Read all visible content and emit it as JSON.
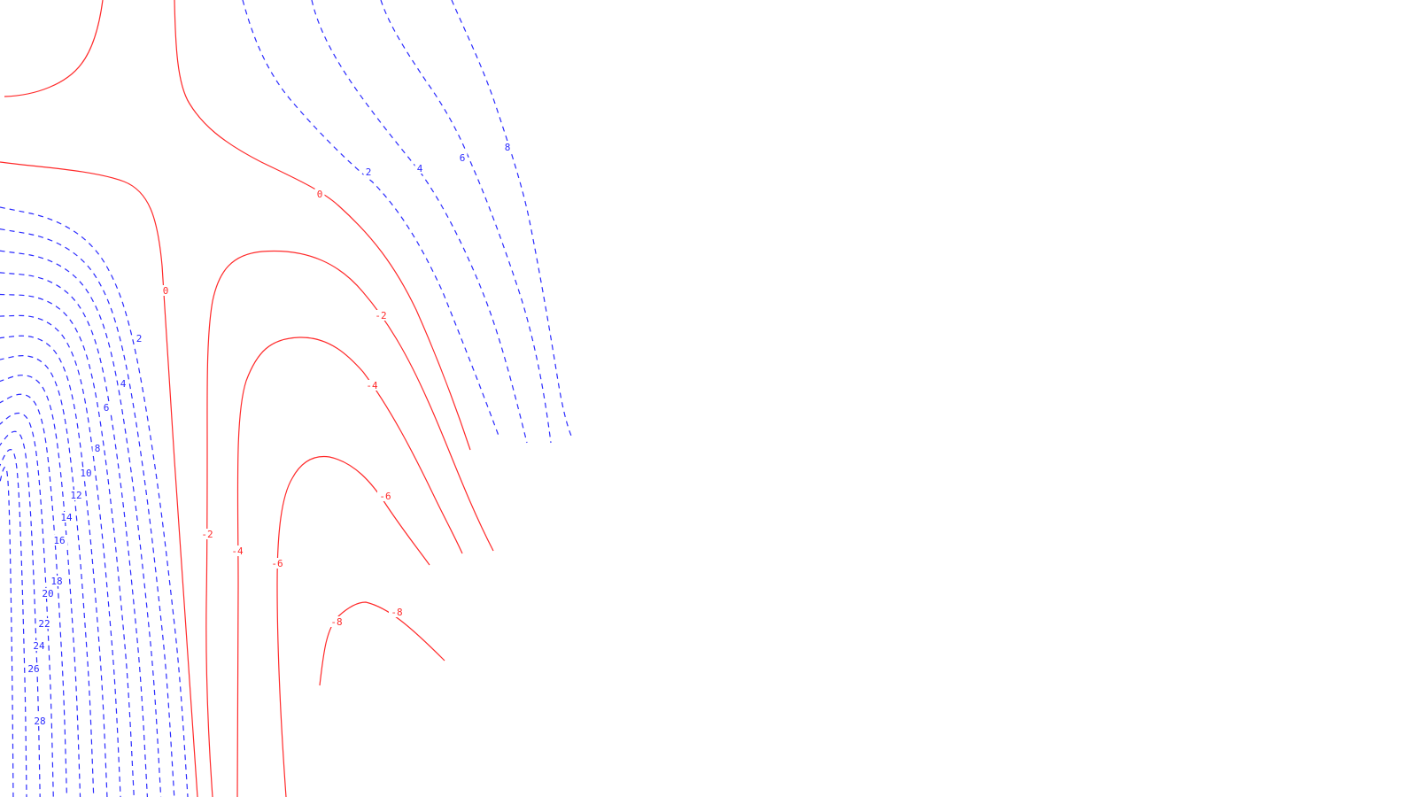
{
  "chart_data": {
    "type": "contour",
    "title": "",
    "xlabel": "",
    "ylabel": "",
    "grid": false,
    "legend": "none",
    "colors": {
      "positive": "#2b2bff",
      "negative": "#ff2a2a"
    },
    "line_styles": {
      "positive": "dashed",
      "negative": "solid"
    },
    "levels": [
      -8,
      -6,
      -4,
      -2,
      0,
      2,
      4,
      6,
      8,
      10,
      12,
      14,
      16,
      18,
      20,
      22,
      24,
      26,
      28
    ],
    "labels": [
      {
        "text": "0",
        "sign": "negative"
      },
      {
        "text": "0",
        "sign": "negative"
      },
      {
        "text": "-2",
        "sign": "negative"
      },
      {
        "text": "-2",
        "sign": "negative"
      },
      {
        "text": "-4",
        "sign": "negative"
      },
      {
        "text": "-4",
        "sign": "negative"
      },
      {
        "text": "-6",
        "sign": "negative"
      },
      {
        "text": "-6",
        "sign": "negative"
      },
      {
        "text": "-8",
        "sign": "negative"
      },
      {
        "text": "-8",
        "sign": "negative"
      },
      {
        "text": "2",
        "sign": "positive"
      },
      {
        "text": "4",
        "sign": "positive"
      },
      {
        "text": "6",
        "sign": "positive"
      },
      {
        "text": "8",
        "sign": "positive"
      },
      {
        "text": "2",
        "sign": "positive"
      },
      {
        "text": "4",
        "sign": "positive"
      },
      {
        "text": "6",
        "sign": "positive"
      },
      {
        "text": "8",
        "sign": "positive"
      },
      {
        "text": "10",
        "sign": "positive"
      },
      {
        "text": "12",
        "sign": "positive"
      },
      {
        "text": "14",
        "sign": "positive"
      },
      {
        "text": "16",
        "sign": "positive"
      },
      {
        "text": "18",
        "sign": "positive"
      },
      {
        "text": "20",
        "sign": "positive"
      },
      {
        "text": "22",
        "sign": "positive"
      },
      {
        "text": "24",
        "sign": "positive"
      },
      {
        "text": "26",
        "sign": "positive"
      },
      {
        "text": "28",
        "sign": "positive"
      }
    ]
  }
}
